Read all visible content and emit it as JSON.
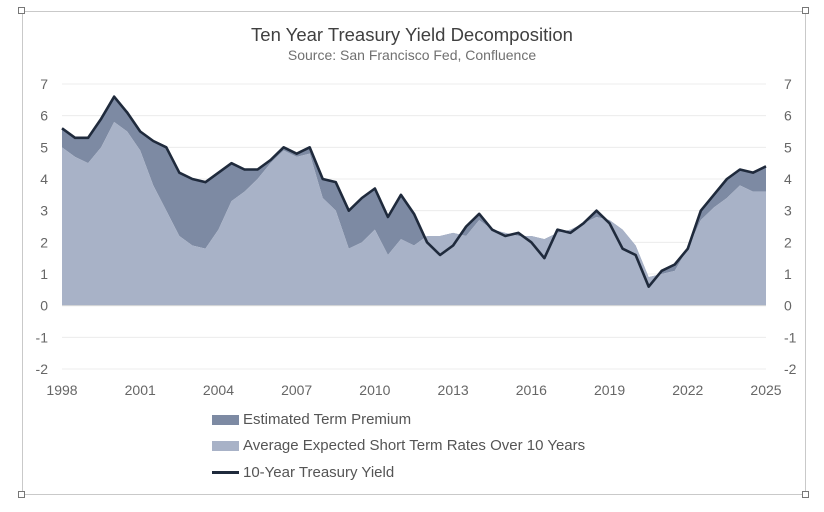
{
  "colors": {
    "term_premium": "#7d8aa3",
    "expected_rates": "#a8b2c7",
    "yield_line": "#1f2a3c"
  },
  "chart_data": {
    "type": "area",
    "title": "Ten Year Treasury Yield Decomposition",
    "subtitle": "Source: San Francisco Fed, Confluence",
    "xlim": [
      1998,
      2025
    ],
    "ylim": [
      -2,
      7
    ],
    "x_ticks": [
      "1998",
      "2001",
      "2004",
      "2007",
      "2010",
      "2013",
      "2016",
      "2019",
      "2022",
      "2025"
    ],
    "y_ticks_left": [
      "7",
      "6",
      "5",
      "4",
      "3",
      "2",
      "1",
      "0",
      "-1",
      "-2"
    ],
    "y_ticks_right": [
      "7",
      "6",
      "5",
      "4",
      "3",
      "2",
      "1",
      "0",
      "-1",
      "-2"
    ],
    "grid": true,
    "legend_position": "bottom",
    "x": [
      1998.0,
      1998.5,
      1999.0,
      1999.5,
      2000.0,
      2000.5,
      2001.0,
      2001.5,
      2002.0,
      2002.5,
      2003.0,
      2003.5,
      2004.0,
      2004.5,
      2005.0,
      2005.5,
      2006.0,
      2006.5,
      2007.0,
      2007.5,
      2008.0,
      2008.5,
      2009.0,
      2009.5,
      2010.0,
      2010.5,
      2011.0,
      2011.5,
      2012.0,
      2012.5,
      2013.0,
      2013.5,
      2014.0,
      2014.5,
      2015.0,
      2015.5,
      2016.0,
      2016.5,
      2017.0,
      2017.5,
      2018.0,
      2018.5,
      2019.0,
      2019.5,
      2020.0,
      2020.5,
      2021.0,
      2021.5,
      2022.0,
      2022.5,
      2023.0,
      2023.5,
      2024.0,
      2024.5,
      2025.0
    ],
    "series": [
      {
        "name": "Estimated Term Premium",
        "values": [
          0.6,
          0.6,
          0.8,
          0.9,
          0.8,
          0.6,
          0.6,
          1.4,
          2.0,
          2.0,
          2.1,
          2.1,
          1.8,
          1.2,
          0.7,
          0.3,
          0.1,
          0.1,
          0.1,
          0.2,
          0.6,
          0.9,
          1.2,
          1.4,
          1.3,
          1.2,
          1.4,
          1.0,
          -0.2,
          -0.6,
          -0.4,
          0.3,
          0.2,
          0.0,
          -0.1,
          0.1,
          -0.2,
          -0.6,
          0.1,
          -0.1,
          0.0,
          0.2,
          -0.1,
          -0.6,
          -0.3,
          -0.3,
          0.1,
          0.2,
          0.0,
          0.3,
          0.4,
          0.6,
          0.5,
          0.6,
          0.8
        ]
      },
      {
        "name": "Average Expected Short Term Rates Over 10 Years",
        "values": [
          5.0,
          4.7,
          4.5,
          5.0,
          5.8,
          5.5,
          4.9,
          3.8,
          3.0,
          2.2,
          1.9,
          1.8,
          2.4,
          3.3,
          3.6,
          4.0,
          4.5,
          4.9,
          4.7,
          4.8,
          3.4,
          3.0,
          1.8,
          2.0,
          2.4,
          1.6,
          2.1,
          1.9,
          2.2,
          2.2,
          2.3,
          2.2,
          2.7,
          2.4,
          2.3,
          2.2,
          2.2,
          2.1,
          2.3,
          2.4,
          2.6,
          2.8,
          2.7,
          2.4,
          1.9,
          0.9,
          1.0,
          1.1,
          1.8,
          2.7,
          3.1,
          3.4,
          3.8,
          3.6,
          3.6
        ]
      },
      {
        "name": "10-Year Treasury Yield",
        "values": [
          5.6,
          5.3,
          5.3,
          5.9,
          6.6,
          6.1,
          5.5,
          5.2,
          5.0,
          4.2,
          4.0,
          3.9,
          4.2,
          4.5,
          4.3,
          4.3,
          4.6,
          5.0,
          4.8,
          5.0,
          4.0,
          3.9,
          3.0,
          3.4,
          3.7,
          2.8,
          3.5,
          2.9,
          2.0,
          1.6,
          1.9,
          2.5,
          2.9,
          2.4,
          2.2,
          2.3,
          2.0,
          1.5,
          2.4,
          2.3,
          2.6,
          3.0,
          2.6,
          1.8,
          1.6,
          0.6,
          1.1,
          1.3,
          1.8,
          3.0,
          3.5,
          4.0,
          4.3,
          4.2,
          4.4
        ]
      }
    ]
  }
}
